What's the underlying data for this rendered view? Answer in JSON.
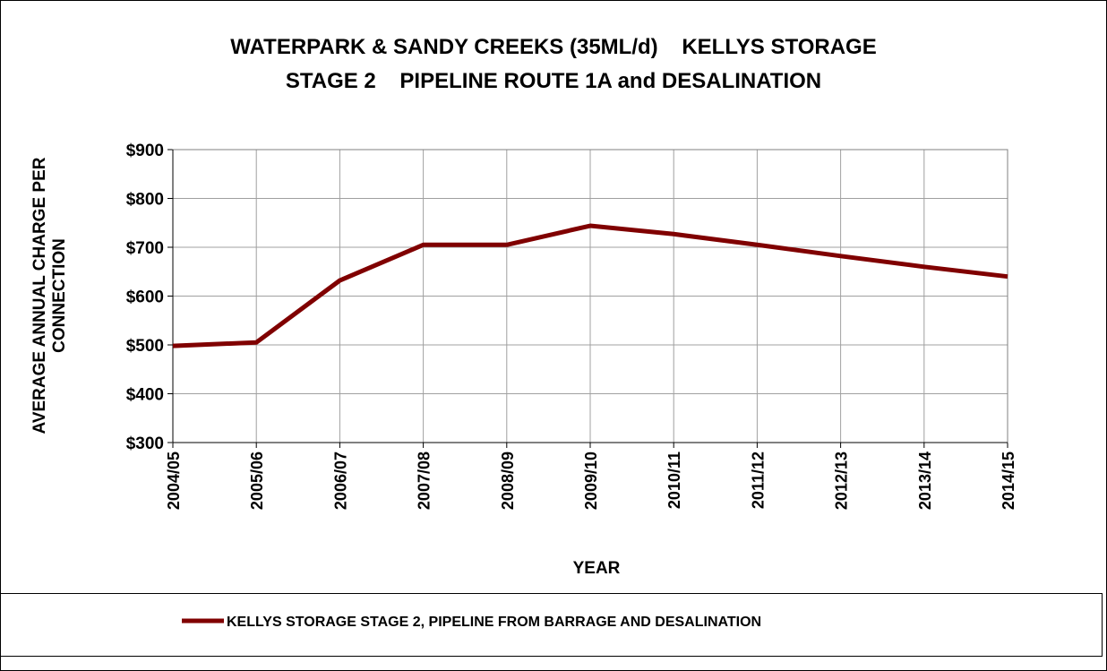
{
  "chart_data": {
    "type": "line",
    "title": [
      "WATERPARK & SANDY CREEKS (35ML/d)    KELLYS STORAGE",
      "STAGE 2    PIPELINE ROUTE 1A and DESALINATION"
    ],
    "x_label": "YEAR",
    "y_label": [
      "AVERAGE ANNUAL CHARGE PER",
      "CONNECTION"
    ],
    "categories": [
      "2004/05",
      "2005/06",
      "2006/07",
      "2007/08",
      "2008/09",
      "2009/10",
      "2010/11",
      "2011/12",
      "2012/13",
      "2013/14",
      "2014/15"
    ],
    "series": [
      {
        "name": "KELLYS STORAGE STAGE 2, PIPELINE FROM BARRAGE AND DESALINATION",
        "color": "#800000",
        "values": [
          498,
          505,
          632,
          705,
          705,
          744,
          727,
          705,
          682,
          660,
          640
        ]
      }
    ],
    "ylim": [
      300,
      900
    ],
    "yticks": [
      {
        "value": 300,
        "label": "$300"
      },
      {
        "value": 400,
        "label": "$400"
      },
      {
        "value": 500,
        "label": "$500"
      },
      {
        "value": 600,
        "label": "$600"
      },
      {
        "value": 700,
        "label": "$700"
      },
      {
        "value": 800,
        "label": "$800"
      },
      {
        "value": 900,
        "label": "$900"
      }
    ],
    "grid": true,
    "legend": "bottom"
  }
}
